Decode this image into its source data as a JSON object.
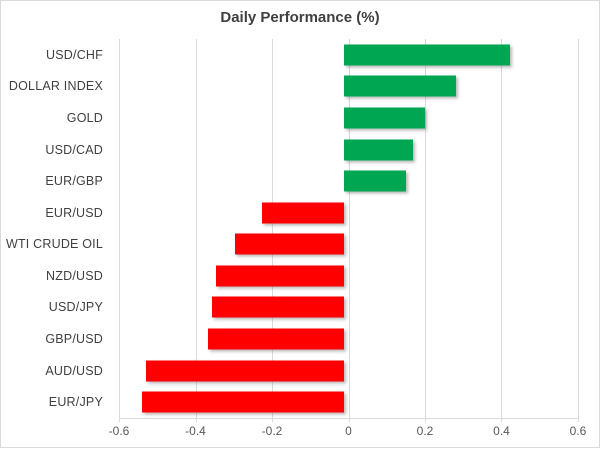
{
  "title": "Daily Performance (%)",
  "colors": {
    "positive": "#00A651",
    "negative": "#FF0000",
    "gridline": "#D9D9D9",
    "title_text": "#3F3F3F",
    "category_text": "#404040",
    "tick_text": "#595959"
  },
  "chart_data": {
    "type": "bar",
    "orientation": "horizontal",
    "title": "Daily Performance (%)",
    "categories": [
      "USD/CHF",
      "DOLLAR INDEX",
      "GOLD",
      "USD/CAD",
      "EUR/GBP",
      "EUR/USD",
      "WTI CRUDE OIL",
      "NZD/USD",
      "USD/JPY",
      "GBP/USD",
      "AUD/USD",
      "EUR/JPY"
    ],
    "values": [
      0.43,
      0.29,
      0.21,
      0.18,
      0.16,
      -0.21,
      -0.28,
      -0.33,
      -0.34,
      -0.35,
      -0.51,
      -0.52
    ],
    "xlim": [
      -0.6,
      0.6
    ],
    "x_tick_values": [
      -0.6,
      -0.4,
      -0.2,
      0,
      0.2,
      0.4,
      0.6
    ],
    "x_tick_labels": [
      "-0.6",
      "-0.4",
      "-0.2",
      "0",
      "0.2",
      "0.4",
      "0.6"
    ],
    "xlabel": "",
    "ylabel": "",
    "grid": "vertical",
    "legend": "none",
    "series_colors": {
      "positive": "#00A651",
      "negative": "#FF0000"
    }
  }
}
